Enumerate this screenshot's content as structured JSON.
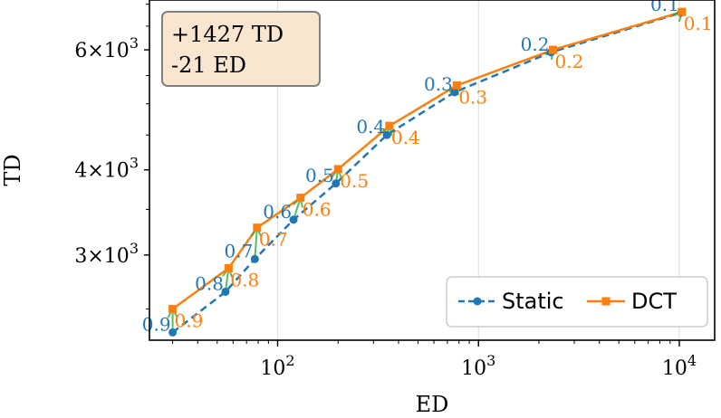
{
  "chart_data": {
    "type": "line",
    "xlabel": "ED",
    "ylabel": "TD",
    "xscale": "log",
    "yscale": "log",
    "xlim": [
      23,
      15000
    ],
    "ylim": [
      2250,
      7100
    ],
    "grid": "x-major",
    "x_ticks": [
      {
        "value": 100,
        "base": "10",
        "exp": "2"
      },
      {
        "value": 1000,
        "base": "10",
        "exp": "3"
      },
      {
        "value": 10000,
        "base": "10",
        "exp": "4"
      }
    ],
    "y_ticks": [
      {
        "value": 3000,
        "mant": "3",
        "base": "10",
        "exp": "3"
      },
      {
        "value": 4000,
        "mant": "4",
        "base": "10",
        "exp": "3"
      },
      {
        "value": 6000,
        "mant": "6",
        "base": "10",
        "exp": "3"
      }
    ],
    "series": [
      {
        "name": "Static",
        "color": "#1f77b4",
        "marker": "circle",
        "linestyle": "dashed",
        "points": [
          {
            "label": "0.9",
            "x": 30,
            "y": 2310
          },
          {
            "label": "0.8",
            "x": 55,
            "y": 2650
          },
          {
            "label": "0.7",
            "x": 77,
            "y": 2960
          },
          {
            "label": "0.6",
            "x": 120,
            "y": 3380
          },
          {
            "label": "0.5",
            "x": 195,
            "y": 3820
          },
          {
            "label": "0.4",
            "x": 350,
            "y": 4500
          },
          {
            "label": "0.3",
            "x": 760,
            "y": 5200
          },
          {
            "label": "0.2",
            "x": 2300,
            "y": 5950
          },
          {
            "label": "0.1",
            "x": 10200,
            "y": 6800
          }
        ]
      },
      {
        "name": "DCT",
        "color": "#ff7f0e",
        "marker": "square",
        "linestyle": "solid",
        "points": [
          {
            "label": "0.9",
            "x": 30,
            "y": 2500
          },
          {
            "label": "0.8",
            "x": 57,
            "y": 2870
          },
          {
            "label": "0.7",
            "x": 79,
            "y": 3290
          },
          {
            "label": "0.6",
            "x": 130,
            "y": 3640
          },
          {
            "label": "0.5",
            "x": 200,
            "y": 4010
          },
          {
            "label": "0.4",
            "x": 360,
            "y": 4640
          },
          {
            "label": "0.3",
            "x": 780,
            "y": 5320
          },
          {
            "label": "0.2",
            "x": 2350,
            "y": 6000
          },
          {
            "label": "0.1",
            "x": 10300,
            "y": 6820
          }
        ]
      }
    ],
    "arrow_color": "#2ca02c",
    "legend": {
      "position": "lower-right",
      "entries": [
        "Static",
        "DCT"
      ]
    },
    "annotation": {
      "lines": [
        "+1427 TD",
        "-21 ED"
      ],
      "position": "top-left",
      "bg": "#f8e6d0"
    }
  }
}
